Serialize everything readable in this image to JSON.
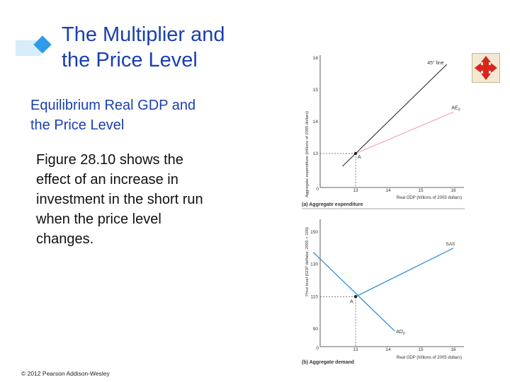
{
  "slide": {
    "title": "The Multiplier and\nthe Price Level",
    "subtitle": "Equilibrium Real GDP and\nthe Price Level",
    "body": "Figure 28.10 shows the\neffect of an increase in\ninvestment in the short run\nwhen the price level\nchanges.",
    "copyright": "© 2012 Pearson Addison-Wesley"
  },
  "icons": {
    "title_bullet": "diamond-bullet-icon",
    "navigation": "four-arrows-nav-icon"
  },
  "colors": {
    "title": "#1a3fb0",
    "ae_line": "#f4a8bc",
    "ad_line": "#2f8fd6",
    "as_line": "#2f8fd6",
    "line45": "#222222"
  },
  "chart_data": [
    {
      "type": "line",
      "title": "(a) Aggregate expenditure",
      "xlabel": "Real GDP (trillions of 2005 dollars)",
      "ylabel": "Aggregate expenditure (trillions of 2005 dollars)",
      "xlim": [
        13,
        16
      ],
      "ylim": [
        13,
        16
      ],
      "x_ticks": [
        "0",
        "13",
        "14",
        "15",
        "16"
      ],
      "y_ticks": [
        "13",
        "14",
        "15",
        "16"
      ],
      "series": [
        {
          "name": "45° line",
          "label": "45° line",
          "x": [
            12.6,
            15.8
          ],
          "y": [
            12.6,
            15.8
          ]
        },
        {
          "name": "AE0",
          "label": "AE",
          "label_sub": "0",
          "x": [
            13,
            16
          ],
          "y": [
            13,
            14.3
          ]
        }
      ],
      "points": [
        {
          "name": "A",
          "x": 13,
          "y": 13
        }
      ]
    },
    {
      "type": "line",
      "title": "(b) Aggregate demand",
      "xlabel": "Real GDP (trillions of 2005 dollars)",
      "ylabel": "Price level (GDP deflator, 2005 = 100)",
      "xlim": [
        13,
        16
      ],
      "ylim": [
        90,
        150
      ],
      "x_ticks": [
        "0",
        "13",
        "14",
        "15",
        "16"
      ],
      "y_ticks": [
        "90",
        "110",
        "130",
        "150"
      ],
      "series": [
        {
          "name": "SAS",
          "label": "SAS",
          "x": [
            13,
            16
          ],
          "y": [
            110,
            140
          ]
        },
        {
          "name": "AD0",
          "label": "AD",
          "label_sub": "0",
          "x": [
            11.7,
            13,
            14.2
          ],
          "y": [
            137.5,
            110,
            88.7
          ]
        }
      ],
      "points": [
        {
          "name": "A",
          "x": 13,
          "y": 110
        }
      ]
    }
  ]
}
